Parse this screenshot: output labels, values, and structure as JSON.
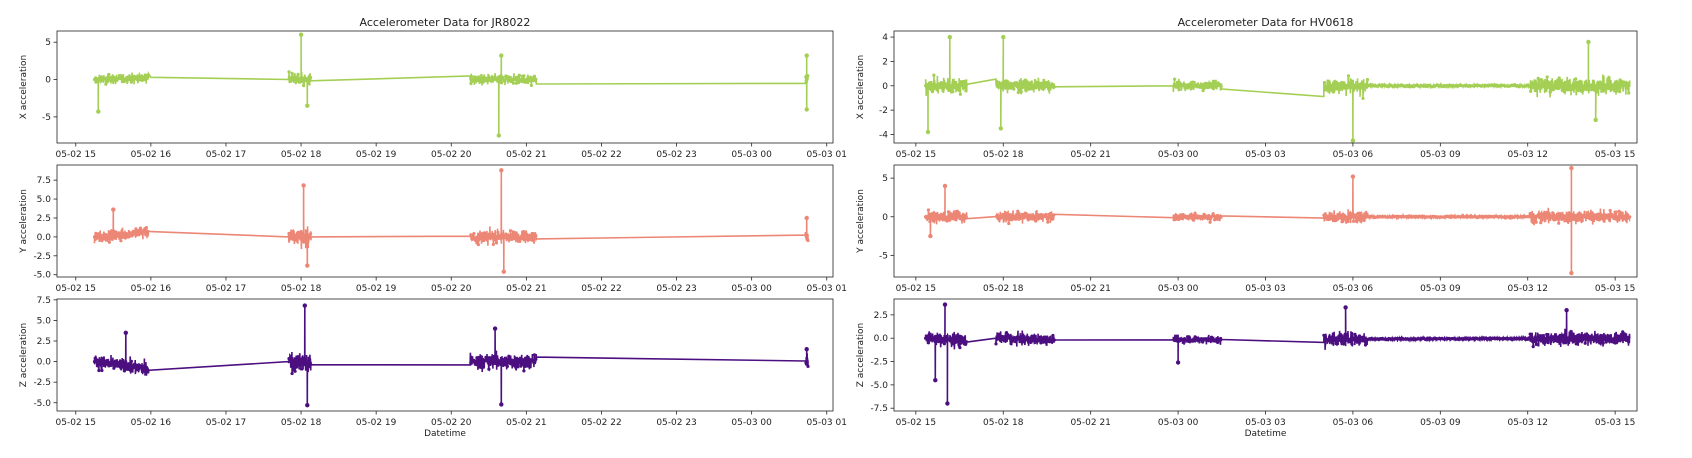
{
  "colors": {
    "x": "#a4cf55",
    "y": "#ec8776",
    "z": "#4c0f80",
    "axes": "#222222"
  },
  "chart_data": [
    {
      "type": "line",
      "title": "Accelerometer Data for JR8022",
      "xlabel": "Datetime",
      "x_range": [
        "2023-05-02 14:45",
        "2023-05-03 01:05"
      ],
      "x_ticks": [
        "05-02 15",
        "05-02 16",
        "05-02 17",
        "05-02 18",
        "05-02 19",
        "05-02 20",
        "05-02 21",
        "05-02 22",
        "05-02 23",
        "05-03 00",
        "05-03 01"
      ],
      "bursts": [
        {
          "start": "2023-05-02 15:15",
          "end": "2023-05-02 15:58",
          "scale": 0.75
        },
        {
          "start": "2023-05-02 17:50",
          "end": "2023-05-02 18:08",
          "scale": 1.0
        },
        {
          "start": "2023-05-02 20:15",
          "end": "2023-05-02 21:08",
          "scale": 0.85
        },
        {
          "start": "2023-05-03 00:43",
          "end": "2023-05-03 00:45",
          "scale": 0.8
        }
      ],
      "panels": [
        {
          "ylabel": "X acceleration",
          "series": "X",
          "color_key": "x",
          "ylim": [
            -8.5,
            6.5
          ],
          "yticks": [
            -5,
            0,
            5
          ],
          "amp": 1.1,
          "baseline": [
            [
              "2023-05-02 15:15",
              0.0
            ],
            [
              "2023-05-02 16:00",
              0.3
            ],
            [
              "2023-05-02 17:50",
              0.0
            ],
            [
              "2023-05-03 00:45",
              0.0
            ]
          ],
          "spikes": [
            [
              "2023-05-02 18:00",
              6.0
            ],
            [
              "2023-05-02 18:05",
              -3.5
            ],
            [
              "2023-05-02 20:38",
              -7.5
            ],
            [
              "2023-05-02 20:40",
              3.2
            ],
            [
              "2023-05-02 15:18",
              -4.3
            ],
            [
              "2023-05-03 00:44",
              3.2
            ],
            [
              "2023-05-03 00:44",
              -4.0
            ]
          ]
        },
        {
          "ylabel": "Y acceleration",
          "series": "Y",
          "color_key": "y",
          "ylim": [
            -5.3,
            9.5
          ],
          "yticks": [
            -5.0,
            -2.5,
            0.0,
            2.5,
            5.0,
            7.5
          ],
          "amp": 1.4,
          "baseline": [
            [
              "2023-05-02 15:15",
              0.0
            ],
            [
              "2023-05-02 16:00",
              0.7
            ],
            [
              "2023-05-02 17:50",
              0.0
            ],
            [
              "2023-05-03 00:45",
              0.0
            ]
          ],
          "spikes": [
            [
              "2023-05-02 18:02",
              6.8
            ],
            [
              "2023-05-02 18:05",
              -3.8
            ],
            [
              "2023-05-02 20:40",
              8.8
            ],
            [
              "2023-05-02 20:42",
              -4.6
            ],
            [
              "2023-05-02 15:30",
              3.6
            ],
            [
              "2023-05-03 00:44",
              2.5
            ]
          ]
        },
        {
          "ylabel": "Z acceleration",
          "series": "Z",
          "color_key": "z",
          "ylim": [
            -6.0,
            7.6
          ],
          "yticks": [
            -5.0,
            -2.5,
            0.0,
            2.5,
            5.0,
            7.5
          ],
          "amp": 1.5,
          "baseline": [
            [
              "2023-05-02 15:15",
              0.0
            ],
            [
              "2023-05-02 15:58",
              -0.9
            ],
            [
              "2023-05-02 17:50",
              0.0
            ],
            [
              "2023-05-03 00:45",
              0.0
            ]
          ],
          "spikes": [
            [
              "2023-05-02 18:03",
              6.8
            ],
            [
              "2023-05-02 18:05",
              -5.3
            ],
            [
              "2023-05-02 20:40",
              -5.2
            ],
            [
              "2023-05-02 20:35",
              4.0
            ],
            [
              "2023-05-02 15:40",
              3.5
            ],
            [
              "2023-05-03 00:44",
              1.5
            ]
          ]
        }
      ]
    },
    {
      "type": "line",
      "title": "Accelerometer Data for HV0618",
      "xlabel": "Datetime",
      "x_range": [
        "2023-05-02 14:15",
        "2023-05-03 15:45"
      ],
      "x_ticks": [
        "05-02 15",
        "05-02 18",
        "05-02 21",
        "05-03 00",
        "05-03 03",
        "05-03 06",
        "05-03 09",
        "05-03 12",
        "05-03 15"
      ],
      "bursts": [
        {
          "start": "2023-05-02 15:20",
          "end": "2023-05-02 16:45",
          "scale": 1.0
        },
        {
          "start": "2023-05-02 17:45",
          "end": "2023-05-02 19:45",
          "scale": 0.8
        },
        {
          "start": "2023-05-02 23:50",
          "end": "2023-05-03 01:30",
          "scale": 0.55
        },
        {
          "start": "2023-05-03 05:00",
          "end": "2023-05-03 06:30",
          "scale": 1.0
        },
        {
          "start": "2023-05-03 06:30",
          "end": "2023-05-03 12:05",
          "scale": 0.12
        },
        {
          "start": "2023-05-03 12:05",
          "end": "2023-05-03 15:30",
          "scale": 1.0
        }
      ],
      "panels": [
        {
          "ylabel": "X acceleration",
          "series": "X",
          "color_key": "x",
          "ylim": [
            -4.7,
            4.5
          ],
          "yticks": [
            -4,
            -2,
            0,
            2,
            4
          ],
          "amp": 0.9,
          "baseline": [
            [
              "2023-05-02 15:20",
              0.0
            ],
            [
              "2023-05-03 15:30",
              0.0
            ]
          ],
          "spikes": [
            [
              "2023-05-02 16:10",
              4.0
            ],
            [
              "2023-05-02 15:25",
              -3.8
            ],
            [
              "2023-05-02 18:00",
              4.0
            ],
            [
              "2023-05-02 17:55",
              -3.5
            ],
            [
              "2023-05-03 06:00",
              -4.5
            ],
            [
              "2023-05-03 14:05",
              3.6
            ],
            [
              "2023-05-03 14:20",
              -2.8
            ]
          ]
        },
        {
          "ylabel": "Y acceleration",
          "series": "Y",
          "color_key": "y",
          "ylim": [
            -7.8,
            6.7
          ],
          "yticks": [
            -5,
            0,
            5
          ],
          "amp": 1.1,
          "baseline": [
            [
              "2023-05-02 15:20",
              0.0
            ],
            [
              "2023-05-03 15:30",
              0.0
            ]
          ],
          "spikes": [
            [
              "2023-05-03 06:00",
              5.2
            ],
            [
              "2023-05-03 13:30",
              6.3
            ],
            [
              "2023-05-03 13:30",
              -7.3
            ],
            [
              "2023-05-02 16:00",
              4.0
            ],
            [
              "2023-05-02 15:30",
              -2.5
            ]
          ]
        },
        {
          "ylabel": "Z acceleration",
          "series": "Z",
          "color_key": "z",
          "ylim": [
            -7.8,
            4.2
          ],
          "yticks": [
            -7.5,
            -5.0,
            -2.5,
            0.0,
            2.5
          ],
          "amp": 1.0,
          "baseline": [
            [
              "2023-05-02 15:20",
              0.0
            ],
            [
              "2023-05-02 16:45",
              -0.3
            ],
            [
              "2023-05-02 17:45",
              0.0
            ],
            [
              "2023-05-02 19:45",
              -0.2
            ],
            [
              "2023-05-03 15:30",
              0.0
            ]
          ],
          "spikes": [
            [
              "2023-05-02 15:40",
              -4.5
            ],
            [
              "2023-05-02 16:05",
              -7.0
            ],
            [
              "2023-05-02 16:00",
              3.6
            ],
            [
              "2023-05-03 05:45",
              3.3
            ],
            [
              "2023-05-03 13:20",
              3.0
            ],
            [
              "2023-05-03 00:00",
              -2.6
            ]
          ]
        }
      ]
    }
  ]
}
